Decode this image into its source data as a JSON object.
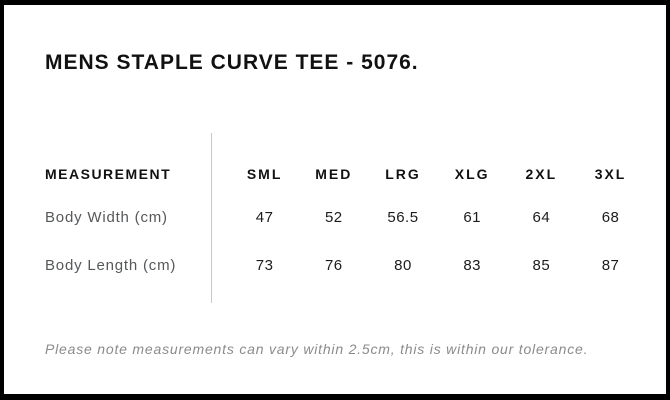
{
  "page": {
    "title": "MENS STAPLE CURVE TEE - 5076.",
    "note": "Please note measurements can vary within 2.5cm, this is within our tolerance."
  },
  "table": {
    "header_label": "MEASUREMENT",
    "size_headers": [
      "SML",
      "MED",
      "LRG",
      "XLG",
      "2XL",
      "3XL"
    ],
    "rows": [
      {
        "label": "Body Width (cm)",
        "values": [
          "47",
          "52",
          "56.5",
          "61",
          "64",
          "68"
        ]
      },
      {
        "label": "Body Length (cm)",
        "values": [
          "73",
          "76",
          "80",
          "83",
          "85",
          "87"
        ]
      }
    ]
  },
  "chart_data": {
    "type": "table",
    "title": "MENS STAPLE CURVE TEE - 5076.",
    "columns": [
      "MEASUREMENT",
      "SML",
      "MED",
      "LRG",
      "XLG",
      "2XL",
      "3XL"
    ],
    "rows": [
      [
        "Body Width (cm)",
        47,
        52,
        56.5,
        61,
        64,
        68
      ],
      [
        "Body Length (cm)",
        73,
        76,
        80,
        83,
        85,
        87
      ]
    ],
    "footnote": "Please note measurements can vary within 2.5cm, this is within our tolerance.",
    "units": "cm"
  },
  "colors": {
    "background": "#ffffff",
    "border": "#000000",
    "title_text": "#111111",
    "header_text": "#111111",
    "value_text": "#1c1c1c",
    "label_text": "#56585a",
    "note_text": "#8b8b8b",
    "divider": "#c9c9c9"
  }
}
